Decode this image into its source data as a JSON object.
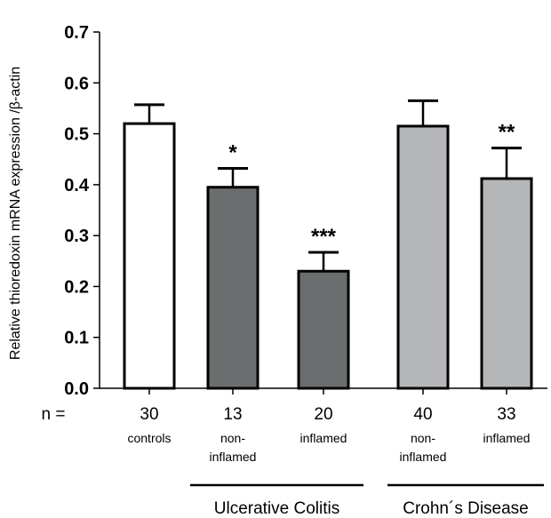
{
  "chart_data": {
    "type": "bar",
    "ylabel": "Relative thioredoxin mRNA expression /β-actin",
    "ylim": [
      0,
      0.7
    ],
    "yticks": [
      "0.0",
      "0.1",
      "0.2",
      "0.3",
      "0.4",
      "0.5",
      "0.6",
      "0.7"
    ],
    "n_prefix": "n =",
    "bars": [
      {
        "n": "30",
        "label_lines": [
          "controls"
        ],
        "value": 0.52,
        "error": 0.037,
        "significance": "",
        "color": "#ffffff"
      },
      {
        "n": "13",
        "label_lines": [
          "non-",
          "inflamed"
        ],
        "value": 0.395,
        "error": 0.037,
        "significance": "*",
        "color": "#6b6e6f"
      },
      {
        "n": "20",
        "label_lines": [
          "inflamed"
        ],
        "value": 0.23,
        "error": 0.037,
        "significance": "***",
        "color": "#6b6e6f"
      },
      {
        "n": "40",
        "label_lines": [
          "non-",
          "inflamed"
        ],
        "value": 0.515,
        "error": 0.05,
        "significance": "",
        "color": "#b5b6b8"
      },
      {
        "n": "33",
        "label_lines": [
          "inflamed"
        ],
        "value": 0.412,
        "error": 0.06,
        "significance": "**",
        "color": "#b5b6b8"
      }
    ],
    "groups": [
      {
        "label": "Ulcerative Colitis",
        "bars": [
          1,
          2
        ]
      },
      {
        "label": "Crohn´s Disease",
        "bars": [
          3,
          4
        ]
      }
    ]
  }
}
